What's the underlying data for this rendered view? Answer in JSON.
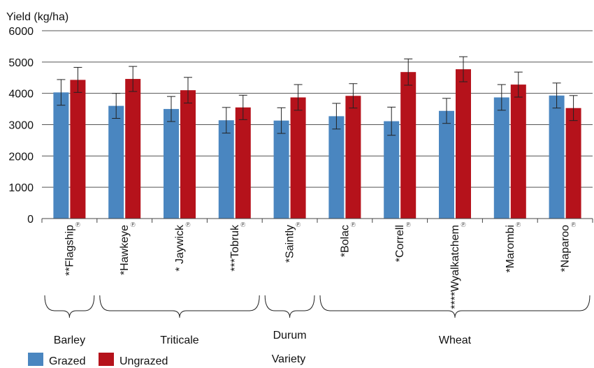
{
  "chart_data": {
    "type": "bar",
    "ylabel": "Yield (kg/ha)",
    "xlabel": "Variety",
    "ylim": [
      0,
      6000
    ],
    "yticks": [
      0,
      1000,
      2000,
      3000,
      4000,
      5000,
      6000
    ],
    "grid": true,
    "legend_position": "bottom-left",
    "pvr_mark": "Ⓟ",
    "categories": [
      "**Flagship",
      "*Hawkeye",
      "* Jaywick",
      "***Tobruk",
      "*Saintly",
      "*Bolac",
      "*Correll",
      "****Wyalkatchem",
      "*Marombi",
      "*Naparoo"
    ],
    "series": [
      {
        "name": "Grazed",
        "color": "#4a86c0",
        "values": [
          4030,
          3600,
          3500,
          3140,
          3130,
          3270,
          3110,
          3440,
          3870,
          3930
        ],
        "errors": [
          410,
          400,
          400,
          410,
          410,
          410,
          450,
          400,
          410,
          400
        ]
      },
      {
        "name": "Ungrazed",
        "color": "#b5121b",
        "values": [
          4430,
          4460,
          4100,
          3550,
          3870,
          3920,
          4680,
          4770,
          4280,
          3530
        ],
        "errors": [
          400,
          400,
          410,
          390,
          410,
          390,
          420,
          400,
          400,
          400
        ]
      }
    ],
    "groups": [
      {
        "label": "Barley",
        "first": 0,
        "last": 0
      },
      {
        "label": "Triticale",
        "first": 1,
        "last": 3
      },
      {
        "label": "Durum",
        "first": 4,
        "last": 4
      },
      {
        "label": "Wheat",
        "first": 5,
        "last": 9
      }
    ]
  }
}
